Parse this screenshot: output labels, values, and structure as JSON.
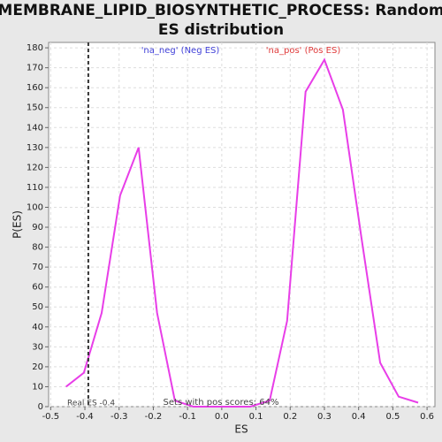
{
  "chart_data": {
    "type": "line",
    "title": [
      "MEMBRANE_LIPID_BIOSYNTHETIC_PROCESS: Random",
      "ES distribution"
    ],
    "x_label": "ES",
    "y_label": "P(ES)",
    "series": [
      {
        "name": "ES distribution",
        "color": "#e83ee8",
        "x": [
          -0.455,
          -0.403,
          -0.351,
          -0.297,
          -0.243,
          -0.189,
          -0.137,
          -0.083,
          -0.03,
          0.03,
          0.083,
          0.14,
          0.191,
          0.245,
          0.3,
          0.354,
          0.408,
          0.463,
          0.517,
          0.574
        ],
        "values": [
          10,
          17,
          47,
          106,
          130,
          47,
          3,
          0,
          0,
          0,
          0,
          3,
          43,
          158,
          174,
          149,
          85,
          22,
          5,
          2
        ]
      }
    ],
    "real_es": -0.39,
    "annotations": {
      "real_es": "Real ES -0.4",
      "pos_scores": "Sets with pos scores: 64%",
      "neg": "'na_neg' (Neg ES)",
      "pos": "'na_pos' (Pos ES)"
    },
    "annotation_colors": {
      "neg": "#3f3fd8",
      "pos": "#e03a3a"
    },
    "xlim": [
      -0.506,
      0.623
    ],
    "ylim": [
      0,
      182.7
    ],
    "xticks": [
      -0.5,
      -0.4,
      -0.3,
      -0.2,
      -0.1,
      {
        "value": 0,
        "label": "0.0"
      },
      0.1,
      0.2,
      0.3,
      0.4,
      0.5,
      0.6
    ],
    "yticks": [
      0,
      10,
      20,
      30,
      40,
      50,
      60,
      70,
      80,
      90,
      100,
      110,
      120,
      130,
      140,
      150,
      160,
      170,
      180
    ],
    "grid": true
  }
}
